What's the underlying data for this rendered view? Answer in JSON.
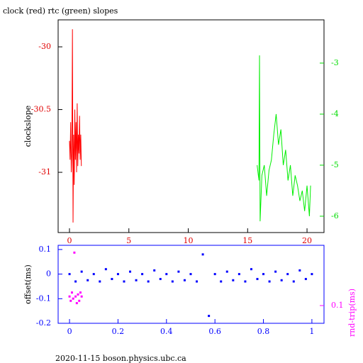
{
  "chart_data": [
    {
      "type": "line",
      "title": "clock (red) rtc (green) slopes",
      "ylabel": "clockslope",
      "xlim": [
        -0.955,
        21.43
      ],
      "xticks": [
        0,
        5,
        10,
        15,
        20
      ],
      "ylim": [
        -31.48,
        -29.785
      ],
      "yticks": [
        -30,
        -30.5,
        -31
      ],
      "y2lim": [
        -6.32,
        -2.153
      ],
      "y2ticks": [
        -3,
        -4,
        -5,
        -6
      ],
      "axis_color": "#000000",
      "xtick_color": "#e00000",
      "ytick_color": "#e00000",
      "y2tick_color": "#00dd00",
      "series": [
        {
          "name": "clock",
          "color": "#ff0000",
          "x": [
            0,
            0.05,
            0.1,
            0.15,
            0.2,
            0.25,
            0.3,
            0.35,
            0.4,
            0.45,
            0.5,
            0.55,
            0.6,
            0.65,
            0.7,
            0.75,
            0.8,
            0.85,
            0.9,
            0.95,
            1.0
          ],
          "values": [
            -30.75,
            -30.9,
            -30.6,
            -31.0,
            -30.85,
            -29.86,
            -31.4,
            -30.7,
            -31.1,
            -30.5,
            -30.9,
            -30.6,
            -31.0,
            -30.45,
            -30.95,
            -30.7,
            -30.85,
            -30.55,
            -30.9,
            -30.7,
            -30.95
          ]
        },
        {
          "name": "rtc",
          "color": "#00ee00",
          "axis": "y2",
          "x": [
            15.8,
            15.95,
            16.0,
            16.05,
            16.2,
            16.4,
            16.6,
            16.8,
            17.0,
            17.2,
            17.4,
            17.6,
            17.8,
            18.0,
            18.2,
            18.4,
            18.6,
            18.8,
            19.0,
            19.2,
            19.4,
            19.6,
            19.8,
            20.0,
            20.2,
            20.3
          ],
          "values": [
            -5.0,
            -5.3,
            -2.85,
            -6.1,
            -5.2,
            -5.0,
            -5.6,
            -5.1,
            -4.9,
            -4.4,
            -4.0,
            -4.6,
            -4.3,
            -5.0,
            -4.7,
            -5.3,
            -5.0,
            -5.6,
            -5.2,
            -5.4,
            -5.7,
            -5.5,
            -5.9,
            -5.4,
            -6.0,
            -5.4
          ]
        }
      ]
    },
    {
      "type": "scatter",
      "ylabel": "offset(ms)",
      "y2label": "rnd-trip(ms)",
      "xlim": [
        -0.047,
        1.05
      ],
      "xticks": [
        0,
        0.2,
        0.4,
        0.6,
        0.8,
        1
      ],
      "ylim": [
        -0.2,
        0.117
      ],
      "yticks": [
        0.1,
        0,
        -0.1,
        -0.2
      ],
      "y2lim": [
        0.07,
        0.336
      ],
      "y2ticks": [
        0.1
      ],
      "y2log": true,
      "axis_color": "#0000ff",
      "xtick_color": "#0000ff",
      "ytick_color": "#0000ff",
      "y2tick_color": "#ff00ff",
      "series": [
        {
          "name": "offset",
          "color": "#0000ff",
          "x": [
            0,
            0.025,
            0.05,
            0.075,
            0.1,
            0.125,
            0.15,
            0.175,
            0.2,
            0.225,
            0.25,
            0.275,
            0.3,
            0.325,
            0.35,
            0.375,
            0.4,
            0.425,
            0.45,
            0.475,
            0.5,
            0.525,
            0.55,
            0.575,
            0.6,
            0.625,
            0.65,
            0.675,
            0.7,
            0.725,
            0.75,
            0.775,
            0.8,
            0.825,
            0.85,
            0.875,
            0.9,
            0.925,
            0.95,
            0.975,
            1.0
          ],
          "values": [
            0.0,
            -0.03,
            0.01,
            -0.025,
            0.0,
            -0.03,
            0.02,
            -0.02,
            0.0,
            -0.03,
            0.01,
            -0.025,
            0.0,
            -0.03,
            0.015,
            -0.02,
            0.0,
            -0.03,
            0.01,
            -0.025,
            0.0,
            -0.03,
            0.08,
            -0.17,
            0.0,
            -0.03,
            0.01,
            -0.025,
            0.0,
            -0.03,
            0.02,
            -0.02,
            0.0,
            -0.03,
            0.01,
            -0.025,
            0.0,
            -0.03,
            0.015,
            -0.02,
            0.0
          ]
        },
        {
          "name": "rnd-trip",
          "color": "#ff00ff",
          "axis": "y2",
          "x": [
            0,
            0.005,
            0.01,
            0.015,
            0.02,
            0.025,
            0.03,
            0.035,
            0.04,
            0.045,
            0.05
          ],
          "values": [
            0.12,
            0.11,
            0.13,
            0.115,
            0.29,
            0.12,
            0.105,
            0.125,
            0.11,
            0.13,
            0.12
          ]
        }
      ]
    }
  ],
  "footer": "2020-11-15 boson.physics.ubc.ca"
}
